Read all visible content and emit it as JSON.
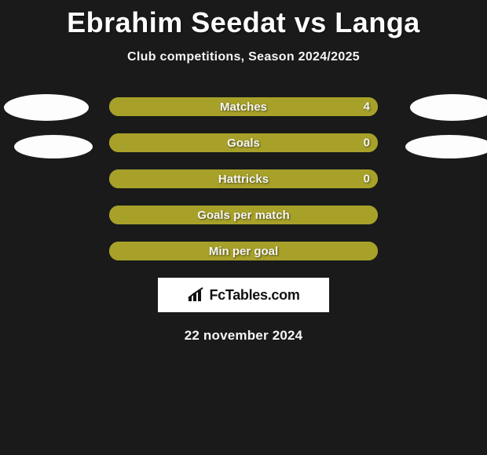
{
  "title": "Ebrahim Seedat vs Langa",
  "subtitle": "Club competitions, Season 2024/2025",
  "date": "22 november 2024",
  "logo_text": "FcTables.com",
  "colors": {
    "left_fill": "#a7a12a",
    "right_fill": "#a7a12a",
    "empty_fill": "#a7a12a",
    "bar_bg": "#a7a12a",
    "background": "#1a1a1a"
  },
  "bars": [
    {
      "label": "Matches",
      "left": "",
      "right": "4",
      "left_pct": 0,
      "right_pct": 100,
      "show_left": false,
      "show_right": true
    },
    {
      "label": "Goals",
      "left": "",
      "right": "0",
      "left_pct": 0,
      "right_pct": 100,
      "show_left": false,
      "show_right": true
    },
    {
      "label": "Hattricks",
      "left": "",
      "right": "0",
      "left_pct": 0,
      "right_pct": 100,
      "show_left": false,
      "show_right": true
    },
    {
      "label": "Goals per match",
      "left": "",
      "right": "",
      "left_pct": 50,
      "right_pct": 50,
      "show_left": false,
      "show_right": false
    },
    {
      "label": "Min per goal",
      "left": "",
      "right": "",
      "left_pct": 50,
      "right_pct": 50,
      "show_left": false,
      "show_right": false
    }
  ]
}
